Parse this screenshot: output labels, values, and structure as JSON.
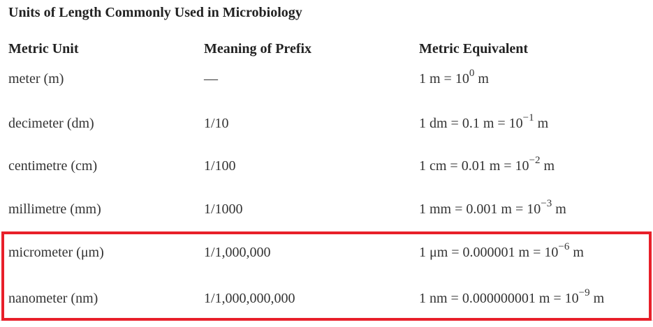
{
  "title": "Units of Length Commonly Used in Microbiology",
  "table": {
    "header": [
      "Metric Unit",
      "Meaning of Prefix",
      "Metric Equivalent"
    ],
    "rows": [
      [
        "meter (m)",
        "—",
        {
          "text": "1 m = 10",
          "sup": "0",
          "unit": "m"
        }
      ],
      [
        "decimeter (dm)",
        "1/10",
        {
          "text": "1 dm = 0.1 m = 10",
          "sup": "−1",
          "unit": "m"
        }
      ],
      [
        "centimetre (cm)",
        "1/100",
        {
          "text": "1 cm = 0.01 m = 10",
          "sup": "−2",
          "unit": "m"
        }
      ],
      [
        "millimetre (mm)",
        "1/1000",
        {
          "text": "1 mm = 0.001 m = 10",
          "sup": "−3",
          "unit": "m"
        }
      ],
      [
        "micrometer (μm)",
        "1/1,000,000",
        {
          "text": "1 μm = 0.000001 m = 10",
          "sup": "−6",
          "unit": "m"
        }
      ],
      [
        "nanometer (nm)",
        "1/1,000,000,000",
        {
          "text": "1 nm = 0.000000001 m = 10",
          "sup": "−9",
          "unit": "m"
        }
      ]
    ]
  }
}
